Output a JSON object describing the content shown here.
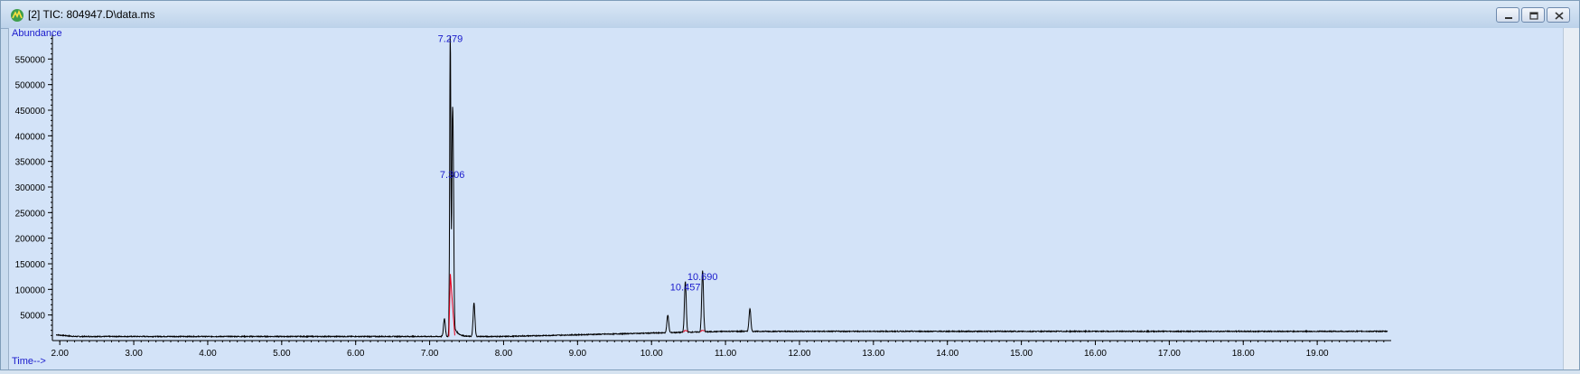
{
  "window": {
    "title": "[2] TIC: 804947.D\\data.ms",
    "icons": {
      "app": "chromatogram-app-icon",
      "minimize": "minimize-icon",
      "restore": "restore-icon",
      "close": "close-icon"
    }
  },
  "chart_data": {
    "type": "line",
    "ylabel": "Abundance",
    "xlabel": "Time-->",
    "xlim": [
      1.9,
      20.0
    ],
    "ylim": [
      0,
      600000
    ],
    "x_ticks": [
      "2.00",
      "3.00",
      "4.00",
      "5.00",
      "6.00",
      "7.00",
      "8.00",
      "9.00",
      "10.00",
      "11.00",
      "12.00",
      "13.00",
      "14.00",
      "15.00",
      "16.00",
      "17.00",
      "18.00",
      "19.00"
    ],
    "y_ticks": [
      "50000",
      "100000",
      "150000",
      "200000",
      "250000",
      "300000",
      "350000",
      "400000",
      "450000",
      "500000",
      "550000"
    ],
    "peak_labels": [
      {
        "text": "7.279",
        "x": 7.279,
        "y": 590000
      },
      {
        "text": "7.306",
        "x": 7.306,
        "y": 325000
      },
      {
        "text": "10.457",
        "x": 10.457,
        "y": 105000
      },
      {
        "text": "10.690",
        "x": 10.69,
        "y": 125000
      }
    ],
    "baseline": {
      "start": 8000,
      "end": 18000
    },
    "peaks": [
      {
        "x": 7.2,
        "y": 35000
      },
      {
        "x": 7.279,
        "y": 590000
      },
      {
        "x": 7.306,
        "y": 330000
      },
      {
        "x": 7.32,
        "y": 280000
      },
      {
        "x": 7.6,
        "y": 65000
      },
      {
        "x": 10.22,
        "y": 35000
      },
      {
        "x": 10.457,
        "y": 100000
      },
      {
        "x": 10.69,
        "y": 120000
      },
      {
        "x": 11.33,
        "y": 45000
      }
    ],
    "colors": {
      "trace": "#000000",
      "integration": "#e8001c",
      "labels": "#1a1acc",
      "axis": "#000000"
    }
  }
}
